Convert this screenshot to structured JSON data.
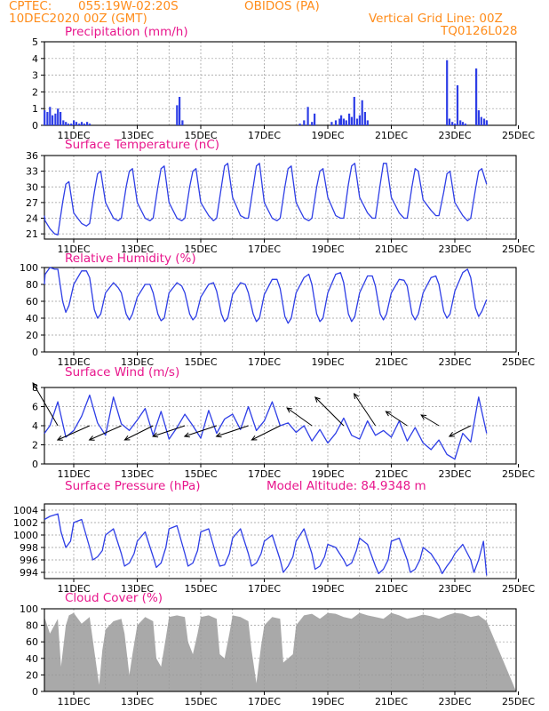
{
  "header": {
    "source": "CPTEC:",
    "location": "055:19W-02:20S",
    "station": "OBIDOS (PA)",
    "run": "10DEC2020 00Z (GMT)",
    "grid_note": "Vertical Grid Line: 00Z",
    "code": "TQ0126L028"
  },
  "x_ticks": [
    "11DEC",
    "13DEC",
    "15DEC",
    "17DEC",
    "19DEC",
    "21DEC",
    "23DEC",
    "25DEC"
  ],
  "colors": {
    "header": "#ff8c1a",
    "title": "#e8168c",
    "line": "#2e3ee6",
    "cloud": "#a9a9a9",
    "grid": "#999999"
  },
  "model_altitude": "Model Altitude: 84.9348 m",
  "chart_data": [
    {
      "id": "precip",
      "type": "bar",
      "title": "Precipitation (mm/h)",
      "ylim": [
        0,
        5
      ],
      "yticks": [
        0,
        1,
        2,
        3,
        4,
        5
      ],
      "x_unit": "days since 10DEC2020 00Z",
      "x": [
        0.0,
        0.08,
        0.17,
        0.25,
        0.33,
        0.42,
        0.5,
        0.58,
        0.67,
        0.75,
        0.83,
        0.92,
        1.0,
        1.08,
        1.17,
        1.25,
        1.33,
        1.42,
        1.5,
        4.25,
        4.33,
        4.42,
        8.12,
        8.25,
        8.37,
        8.5,
        8.58,
        9.12,
        9.25,
        9.37,
        9.42,
        9.5,
        9.58,
        9.67,
        9.75,
        9.83,
        9.92,
        10.0,
        10.08,
        10.17,
        10.25,
        12.75,
        12.83,
        12.92,
        13.0,
        13.08,
        13.17,
        13.25,
        13.33,
        13.67,
        13.75,
        13.83,
        13.92,
        14.0
      ],
      "values": [
        0.2,
        0.9,
        0.8,
        1.1,
        0.6,
        0.7,
        1.0,
        0.8,
        0.3,
        0.2,
        0.1,
        0.1,
        0.3,
        0.2,
        0.1,
        0.2,
        0.1,
        0.2,
        0.1,
        1.2,
        1.7,
        0.3,
        0.1,
        0.3,
        1.1,
        0.2,
        0.7,
        0.2,
        0.3,
        0.4,
        0.6,
        0.4,
        0.3,
        0.7,
        0.5,
        1.7,
        0.4,
        0.6,
        1.5,
        0.8,
        0.3,
        3.9,
        0.4,
        0.2,
        0.1,
        2.4,
        0.3,
        0.2,
        0.1,
        3.4,
        0.9,
        0.5,
        0.4,
        0.3
      ]
    },
    {
      "id": "temp",
      "type": "line",
      "title": "Surface Temperature (nC)",
      "ylim": [
        20,
        36
      ],
      "yticks": [
        21,
        24,
        27,
        30,
        33,
        36
      ],
      "x_unit": "days since 10DEC2020 00Z",
      "x": [
        0,
        0.1,
        0.25,
        0.4,
        0.5,
        0.65,
        0.75,
        0.85,
        1.0,
        1.25,
        1.4,
        1.5,
        1.65,
        1.75,
        1.85,
        2.0,
        2.25,
        2.4,
        2.5,
        2.65,
        2.75,
        2.85,
        3.0,
        3.25,
        3.4,
        3.5,
        3.65,
        3.75,
        3.85,
        4.0,
        4.25,
        4.4,
        4.5,
        4.65,
        4.75,
        4.85,
        5.0,
        5.25,
        5.4,
        5.5,
        5.65,
        5.75,
        5.85,
        6.0,
        6.25,
        6.4,
        6.5,
        6.65,
        6.75,
        6.85,
        7.0,
        7.25,
        7.4,
        7.5,
        7.65,
        7.75,
        7.85,
        8.0,
        8.25,
        8.4,
        8.5,
        8.65,
        8.75,
        8.85,
        9.0,
        9.25,
        9.4,
        9.5,
        9.65,
        9.75,
        9.85,
        10.0,
        10.25,
        10.4,
        10.5,
        10.65,
        10.75,
        10.85,
        11.0,
        11.25,
        11.4,
        11.5,
        11.65,
        11.75,
        11.85,
        12.0,
        12.25,
        12.4,
        12.5,
        12.65,
        12.75,
        12.85,
        13.0,
        13.25,
        13.4,
        13.5,
        13.65,
        13.75,
        13.85,
        14.0
      ],
      "values": [
        24.5,
        23.5,
        22,
        21,
        20.8,
        27,
        30.5,
        31,
        25,
        23,
        22.5,
        23,
        29,
        32.5,
        33,
        27,
        24,
        23.5,
        24,
        30,
        33,
        33.5,
        27,
        24,
        23.5,
        24,
        30,
        33.5,
        34,
        27,
        24,
        23.5,
        24,
        30,
        33,
        33.5,
        27,
        24.5,
        23.5,
        24,
        30,
        34,
        34.5,
        28,
        24.5,
        24,
        24,
        30,
        34,
        34.5,
        27,
        24,
        23.5,
        24,
        30,
        33.5,
        34,
        27,
        24,
        23.5,
        24,
        30,
        33,
        33.5,
        28,
        24.5,
        24,
        24,
        30.5,
        34,
        34.5,
        28,
        25,
        24,
        24,
        30.5,
        34.5,
        34.5,
        28,
        25,
        24,
        24,
        30,
        33.5,
        33,
        27.5,
        25.5,
        24.5,
        24.5,
        29,
        32.5,
        33,
        27,
        24.5,
        23.5,
        24,
        29.5,
        33,
        33.5,
        30.5
      ]
    },
    {
      "id": "rh",
      "type": "line",
      "title": "Relative Humidity (%)",
      "ylim": [
        0,
        100
      ],
      "yticks": [
        0,
        20,
        40,
        60,
        80,
        100
      ],
      "x_unit": "days since 10DEC2020 00Z",
      "x": [
        0,
        0.1,
        0.25,
        0.4,
        0.5,
        0.65,
        0.75,
        0.85,
        1.0,
        1.25,
        1.4,
        1.5,
        1.65,
        1.75,
        1.85,
        2.0,
        2.25,
        2.4,
        2.5,
        2.65,
        2.75,
        2.85,
        3.0,
        3.25,
        3.4,
        3.5,
        3.65,
        3.75,
        3.85,
        4.0,
        4.25,
        4.4,
        4.5,
        4.65,
        4.75,
        4.85,
        5.0,
        5.25,
        5.4,
        5.5,
        5.65,
        5.75,
        5.85,
        6.0,
        6.25,
        6.4,
        6.5,
        6.65,
        6.75,
        6.85,
        7.0,
        7.25,
        7.4,
        7.5,
        7.65,
        7.75,
        7.85,
        8.0,
        8.25,
        8.4,
        8.5,
        8.65,
        8.75,
        8.85,
        9.0,
        9.25,
        9.4,
        9.5,
        9.65,
        9.75,
        9.85,
        10.0,
        10.25,
        10.4,
        10.5,
        10.65,
        10.75,
        10.85,
        11.0,
        11.25,
        11.4,
        11.5,
        11.65,
        11.75,
        11.85,
        12.0,
        12.25,
        12.4,
        12.5,
        12.65,
        12.75,
        12.85,
        13.0,
        13.25,
        13.4,
        13.5,
        13.65,
        13.75,
        13.85,
        14.0
      ],
      "values": [
        80,
        92,
        100,
        98,
        98,
        60,
        47,
        55,
        80,
        96,
        96,
        88,
        50,
        40,
        45,
        70,
        82,
        76,
        70,
        45,
        38,
        45,
        65,
        80,
        80,
        70,
        45,
        37,
        40,
        70,
        82,
        78,
        70,
        45,
        38,
        42,
        65,
        80,
        82,
        72,
        45,
        36,
        40,
        68,
        82,
        80,
        70,
        45,
        36,
        40,
        68,
        86,
        86,
        75,
        42,
        34,
        40,
        70,
        88,
        92,
        80,
        45,
        36,
        40,
        70,
        92,
        94,
        82,
        45,
        36,
        42,
        70,
        90,
        90,
        78,
        45,
        38,
        45,
        70,
        86,
        85,
        78,
        45,
        38,
        45,
        70,
        88,
        90,
        80,
        48,
        40,
        45,
        72,
        94,
        98,
        88,
        52,
        42,
        48,
        62
      ]
    },
    {
      "id": "wind",
      "type": "line",
      "title": "Surface Wind (m/s)",
      "ylim": [
        0,
        8
      ],
      "yticks": [
        0,
        2,
        4,
        6,
        8
      ],
      "x_unit": "days since 10DEC2020 00Z",
      "x": [
        0,
        0.25,
        0.5,
        0.75,
        1.0,
        1.25,
        1.5,
        1.75,
        2.0,
        2.25,
        2.5,
        2.75,
        3.0,
        3.25,
        3.5,
        3.75,
        4.0,
        4.25,
        4.5,
        4.75,
        5.0,
        5.25,
        5.5,
        5.75,
        6.0,
        6.25,
        6.5,
        6.75,
        7.0,
        7.25,
        7.5,
        7.75,
        8.0,
        8.25,
        8.5,
        8.75,
        9.0,
        9.25,
        9.5,
        9.75,
        10.0,
        10.25,
        10.5,
        10.75,
        11.0,
        11.25,
        11.5,
        11.75,
        12.0,
        12.25,
        12.5,
        12.75,
        13.0,
        13.25,
        13.5,
        13.75,
        14.0
      ],
      "values": [
        3.2,
        4.0,
        6.5,
        2.8,
        3.5,
        5.0,
        7.2,
        4.3,
        3.0,
        7.0,
        4.2,
        3.5,
        4.6,
        5.8,
        3.0,
        5.5,
        2.6,
        3.8,
        5.2,
        4.0,
        2.7,
        5.6,
        3.2,
        4.7,
        5.2,
        3.6,
        6.0,
        3.5,
        4.5,
        6.5,
        4.0,
        4.3,
        3.3,
        4.0,
        2.4,
        3.6,
        2.2,
        3.2,
        4.8,
        3.0,
        2.6,
        4.5,
        3.0,
        3.5,
        2.8,
        4.5,
        2.4,
        3.8,
        2.2,
        1.5,
        2.5,
        1.0,
        0.5,
        3.2,
        2.3,
        7.0,
        3.2
      ],
      "barb_x": [
        0.5,
        1.5,
        2.5,
        3.5,
        4.5,
        5.5,
        6.5,
        7.5,
        8.5,
        9.5,
        10.5,
        11.5,
        12.5,
        13.5
      ],
      "barb_dx": [
        -0.7,
        -0.9,
        -0.9,
        -0.8,
        -0.9,
        -0.9,
        -0.9,
        -0.8,
        -0.7,
        -0.8,
        -0.6,
        -0.6,
        -0.5,
        -0.6
      ],
      "barb_dy": [
        1.2,
        -0.4,
        -0.4,
        -0.4,
        -0.3,
        -0.3,
        -0.3,
        -0.4,
        0.5,
        0.8,
        0.9,
        0.4,
        0.3,
        -0.3
      ]
    },
    {
      "id": "press",
      "type": "line",
      "title": "Surface Pressure (hPa)",
      "ylim": [
        993,
        1005
      ],
      "yticks": [
        994,
        996,
        998,
        1000,
        1002,
        1004
      ],
      "x_unit": "days since 10DEC2020 00Z",
      "x": [
        0,
        0.25,
        0.5,
        0.6,
        0.75,
        0.9,
        1.0,
        1.25,
        1.5,
        1.6,
        1.75,
        1.9,
        2.0,
        2.25,
        2.5,
        2.6,
        2.75,
        2.9,
        3.0,
        3.25,
        3.5,
        3.6,
        3.75,
        3.9,
        4.0,
        4.25,
        4.5,
        4.6,
        4.75,
        4.9,
        5.0,
        5.25,
        5.5,
        5.6,
        5.75,
        5.9,
        6.0,
        6.25,
        6.5,
        6.6,
        6.75,
        6.9,
        7.0,
        7.25,
        7.5,
        7.6,
        7.75,
        7.9,
        8.0,
        8.25,
        8.5,
        8.6,
        8.75,
        8.9,
        9.0,
        9.25,
        9.5,
        9.6,
        9.75,
        9.9,
        10.0,
        10.25,
        10.5,
        10.6,
        10.75,
        10.9,
        11.0,
        11.25,
        11.5,
        11.6,
        11.75,
        11.9,
        12.0,
        12.25,
        12.5,
        12.6,
        12.75,
        12.9,
        13.0,
        13.25,
        13.5,
        13.6,
        13.75,
        13.9,
        14.0
      ],
      "values": [
        1002.5,
        1003.0,
        1003.4,
        1000.5,
        998.0,
        999.0,
        1002.0,
        1002.5,
        998.0,
        996.0,
        996.5,
        997.5,
        1000.0,
        1001.0,
        997.0,
        995.0,
        995.5,
        997.0,
        999.0,
        1000.5,
        996.5,
        994.8,
        995.5,
        998.0,
        1001.0,
        1001.5,
        997.0,
        995.0,
        995.5,
        997.5,
        1000.5,
        1001.0,
        996.5,
        995.0,
        995.2,
        997.0,
        999.5,
        1001.0,
        997.0,
        995.0,
        995.5,
        997.0,
        999.0,
        1000.0,
        996.0,
        994.0,
        995.0,
        996.5,
        999.0,
        1001.0,
        997.0,
        994.5,
        995.0,
        996.5,
        998.5,
        998.0,
        996.0,
        995.0,
        995.5,
        997.5,
        999.5,
        998.5,
        995.0,
        993.8,
        994.5,
        996.0,
        999.0,
        999.5,
        996.0,
        994.0,
        994.5,
        996.0,
        998.0,
        997.0,
        995.0,
        993.8,
        995.0,
        996.0,
        997.0,
        998.5,
        996.0,
        994.0,
        996.0,
        999.0,
        993.5
      ]
    },
    {
      "id": "cloud",
      "type": "area",
      "title": "Cloud Cover (%)",
      "ylim": [
        0,
        100
      ],
      "yticks": [
        0,
        20,
        40,
        60,
        80,
        100
      ],
      "x_unit": "days since 10DEC2020 00Z",
      "x": [
        0,
        0.25,
        0.5,
        0.6,
        0.75,
        0.85,
        1.0,
        1.25,
        1.5,
        1.7,
        1.8,
        1.9,
        2.0,
        2.25,
        2.5,
        2.6,
        2.75,
        2.85,
        3.0,
        3.25,
        3.5,
        3.6,
        3.75,
        3.9,
        4.0,
        4.25,
        4.5,
        4.6,
        4.75,
        4.9,
        5.0,
        5.25,
        5.5,
        5.6,
        5.75,
        5.9,
        6.0,
        6.25,
        6.5,
        6.6,
        6.75,
        6.9,
        7.0,
        7.25,
        7.5,
        7.6,
        7.75,
        7.9,
        8.0,
        8.25,
        8.5,
        8.75,
        9.0,
        9.25,
        9.5,
        9.75,
        10.0,
        10.25,
        10.5,
        10.75,
        11.0,
        11.25,
        11.5,
        11.75,
        12.0,
        12.25,
        12.5,
        12.75,
        13.0,
        13.25,
        13.5,
        13.75,
        14.0
      ],
      "values": [
        90,
        70,
        88,
        30,
        80,
        92,
        95,
        82,
        90,
        35,
        8,
        50,
        75,
        85,
        88,
        70,
        20,
        45,
        80,
        90,
        85,
        40,
        30,
        65,
        90,
        92,
        90,
        60,
        45,
        70,
        90,
        92,
        88,
        45,
        40,
        70,
        92,
        90,
        85,
        50,
        10,
        55,
        80,
        90,
        88,
        35,
        40,
        45,
        80,
        92,
        94,
        88,
        95,
        94,
        90,
        88,
        95,
        92,
        90,
        88,
        95,
        92,
        88,
        90,
        93,
        91,
        88,
        92,
        95,
        94,
        90,
        92,
        85
      ]
    }
  ]
}
